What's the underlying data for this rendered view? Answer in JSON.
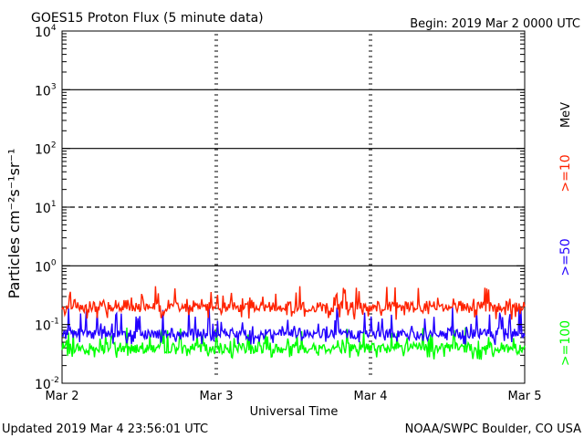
{
  "header": {
    "title": "GOES15 Proton Flux (5 minute data)",
    "begin": "Begin: 2019 Mar 2 0000 UTC"
  },
  "footer": {
    "updated": "Updated 2019 Mar  4 23:56:01 UTC",
    "credit": "NOAA/SWPC Boulder, CO USA"
  },
  "chart_data": {
    "type": "line",
    "title": "GOES15 Proton Flux (5 minute data)",
    "xlabel": "Universal Time",
    "ylabel": "Particles cm⁻²s⁻¹sr⁻¹",
    "y_scale": "log",
    "ylim": [
      0.01,
      10000
    ],
    "xlim": [
      "2019-03-02",
      "2019-03-05"
    ],
    "x_ticks": [
      "Mar 2",
      "Mar 3",
      "Mar 4",
      "Mar 5"
    ],
    "y_ticks": [
      {
        "base": "10",
        "exp": "4"
      },
      {
        "base": "10",
        "exp": "3"
      },
      {
        "base": "10",
        "exp": "2"
      },
      {
        "base": "10",
        "exp": "1"
      },
      {
        "base": "10",
        "exp": "0"
      },
      {
        "base": "10",
        "exp": "-1"
      },
      {
        "base": "10",
        "exp": "-2"
      }
    ],
    "unit_label": "MeV",
    "legend_placement": "right",
    "threshold_lines": [
      {
        "value": 1000,
        "style": "solid"
      },
      {
        "value": 100,
        "style": "solid"
      },
      {
        "value": 10,
        "style": "dashed"
      },
      {
        "value": 1,
        "style": "solid"
      }
    ],
    "series": [
      {
        "name": ">=10",
        "color": "#ff2200",
        "baseline": 0.2,
        "range": [
          0.12,
          0.45
        ]
      },
      {
        "name": ">=50",
        "color": "#2200ff",
        "baseline": 0.07,
        "range": [
          0.045,
          0.2
        ]
      },
      {
        "name": ">=100",
        "color": "#00ff00",
        "baseline": 0.04,
        "range": [
          0.025,
          0.09
        ]
      }
    ]
  }
}
